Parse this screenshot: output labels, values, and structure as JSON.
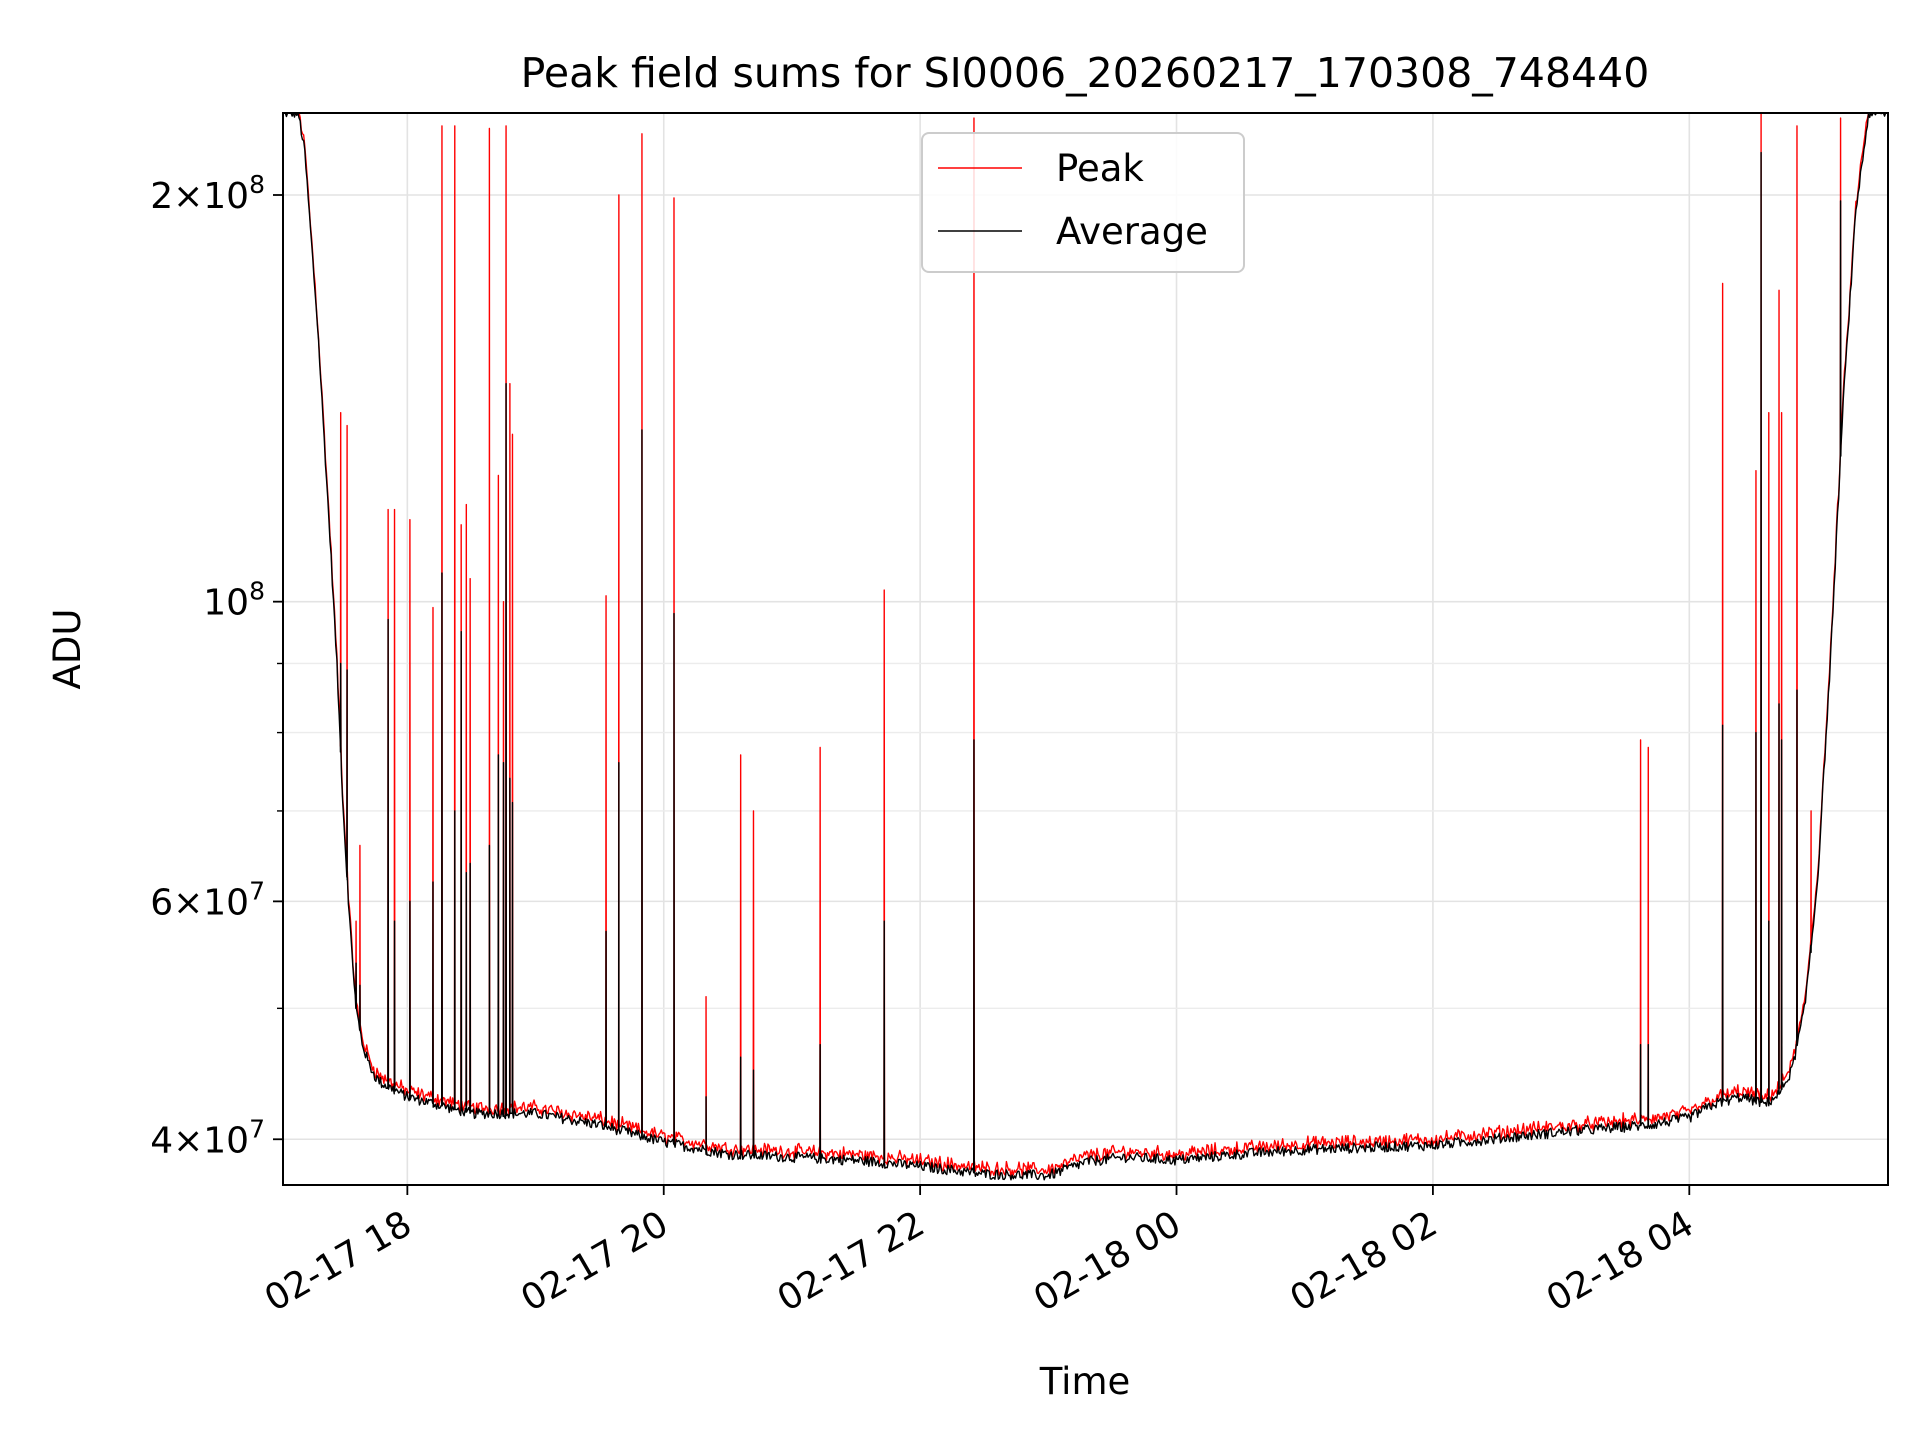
{
  "chart_data": {
    "type": "line",
    "title": "Peak field sums for SI0006_20260217_170308_748440",
    "xlabel": "Time",
    "ylabel": "ADU",
    "yscale": "log",
    "xlim_hours": [
      17.03,
      29.55
    ],
    "ylim": [
      37000000,
      230000000
    ],
    "x_ticks": [
      {
        "hours": 18,
        "label": "02-17 18"
      },
      {
        "hours": 20,
        "label": "02-17 20"
      },
      {
        "hours": 22,
        "label": "02-17 22"
      },
      {
        "hours": 24,
        "label": "02-18 00"
      },
      {
        "hours": 26,
        "label": "02-18 02"
      },
      {
        "hours": 28,
        "label": "02-18 04"
      }
    ],
    "y_ticks": [
      {
        "value": 40000000,
        "mantissa": "4",
        "exp": "7",
        "times": true
      },
      {
        "value": 60000000,
        "mantissa": "6",
        "exp": "7",
        "times": true
      },
      {
        "value": 100000000,
        "mantissa": "",
        "exp": "8",
        "times": false
      },
      {
        "value": 200000000,
        "mantissa": "2",
        "exp": "8",
        "times": true
      }
    ],
    "y_minor_ticks": [
      50000000,
      70000000,
      80000000,
      90000000
    ],
    "grid": true,
    "legend": {
      "position": "top-center",
      "entries": [
        {
          "label": "Peak",
          "color": "#ff0000"
        },
        {
          "label": "Average",
          "color": "#000000"
        }
      ]
    },
    "baseline_hours": [
      17.03,
      17.15,
      17.2,
      17.3,
      17.4,
      17.45,
      17.5,
      17.55,
      17.6,
      17.65,
      17.7,
      17.75,
      17.8,
      17.9,
      18.0,
      18.5,
      19.0,
      19.5,
      20.0,
      20.5,
      21.0,
      21.5,
      22.0,
      22.5,
      23.0,
      23.3,
      23.6,
      24.0,
      24.5,
      25.0,
      26.0,
      27.0,
      27.7,
      28.0,
      28.2,
      28.4,
      28.6,
      28.7,
      28.8,
      28.9,
      29.0,
      29.1,
      29.2,
      29.3,
      29.4,
      29.55
    ],
    "baseline_values": [
      230000000,
      230000000,
      215000000,
      160000000,
      110000000,
      90000000,
      70000000,
      58000000,
      50000000,
      47000000,
      45500000,
      44500000,
      44000000,
      43500000,
      43000000,
      41800000,
      41800000,
      41000000,
      39800000,
      39000000,
      38800000,
      38600000,
      38200000,
      37700000,
      37600000,
      38500000,
      38800000,
      38600000,
      39000000,
      39300000,
      39600000,
      40500000,
      41000000,
      41500000,
      42500000,
      43000000,
      42500000,
      43200000,
      45000000,
      50000000,
      62000000,
      90000000,
      140000000,
      195000000,
      230000000,
      230000000
    ],
    "spikes": [
      {
        "hours": 17.48,
        "peak": 138000000,
        "average": 90000000
      },
      {
        "hours": 17.53,
        "peak": 135000000,
        "average": 89000000
      },
      {
        "hours": 17.6,
        "peak": 58000000,
        "average": 54000000
      },
      {
        "hours": 17.63,
        "peak": 66000000,
        "average": 52000000
      },
      {
        "hours": 17.85,
        "peak": 117000000,
        "average": 97000000
      },
      {
        "hours": 17.9,
        "peak": 117000000,
        "average": 58000000
      },
      {
        "hours": 18.02,
        "peak": 115000000,
        "average": 60000000
      },
      {
        "hours": 18.2,
        "peak": 99000000,
        "average": 62000000
      },
      {
        "hours": 18.27,
        "peak": 225000000,
        "average": 105000000
      },
      {
        "hours": 18.37,
        "peak": 225000000,
        "average": 70000000
      },
      {
        "hours": 18.42,
        "peak": 114000000,
        "average": 95000000
      },
      {
        "hours": 18.46,
        "peak": 118000000,
        "average": 63000000
      },
      {
        "hours": 18.49,
        "peak": 104000000,
        "average": 64000000
      },
      {
        "hours": 18.64,
        "peak": 224000000,
        "average": 66000000
      },
      {
        "hours": 18.71,
        "peak": 124000000,
        "average": 77000000
      },
      {
        "hours": 18.75,
        "peak": 100000000,
        "average": 76000000
      },
      {
        "hours": 18.77,
        "peak": 225000000,
        "average": 145000000
      },
      {
        "hours": 18.8,
        "peak": 145000000,
        "average": 74000000
      },
      {
        "hours": 18.82,
        "peak": 133000000,
        "average": 71000000
      },
      {
        "hours": 19.55,
        "peak": 101000000,
        "average": 57000000
      },
      {
        "hours": 19.65,
        "peak": 200000000,
        "average": 76000000
      },
      {
        "hours": 19.83,
        "peak": 222000000,
        "average": 134000000
      },
      {
        "hours": 20.08,
        "peak": 199000000,
        "average": 98000000
      },
      {
        "hours": 20.33,
        "peak": 51000000,
        "average": 43000000
      },
      {
        "hours": 20.6,
        "peak": 77000000,
        "average": 46000000
      },
      {
        "hours": 20.7,
        "peak": 70000000,
        "average": 45000000
      },
      {
        "hours": 21.22,
        "peak": 78000000,
        "average": 47000000
      },
      {
        "hours": 21.72,
        "peak": 102000000,
        "average": 58000000
      },
      {
        "hours": 22.42,
        "peak": 228000000,
        "average": 79000000
      },
      {
        "hours": 27.62,
        "peak": 79000000,
        "average": 47000000
      },
      {
        "hours": 27.68,
        "peak": 78000000,
        "average": 47000000
      },
      {
        "hours": 28.26,
        "peak": 172000000,
        "average": 81000000
      },
      {
        "hours": 28.52,
        "peak": 125000000,
        "average": 80000000
      },
      {
        "hours": 28.56,
        "peak": 230000000,
        "average": 215000000
      },
      {
        "hours": 28.62,
        "peak": 138000000,
        "average": 58000000
      },
      {
        "hours": 28.7,
        "peak": 170000000,
        "average": 84000000
      },
      {
        "hours": 28.72,
        "peak": 138000000,
        "average": 79000000
      },
      {
        "hours": 28.84,
        "peak": 225000000,
        "average": 86000000
      },
      {
        "hours": 28.95,
        "peak": 70000000,
        "average": 55000000
      },
      {
        "hours": 29.18,
        "peak": 228000000,
        "average": 198000000
      }
    ]
  }
}
